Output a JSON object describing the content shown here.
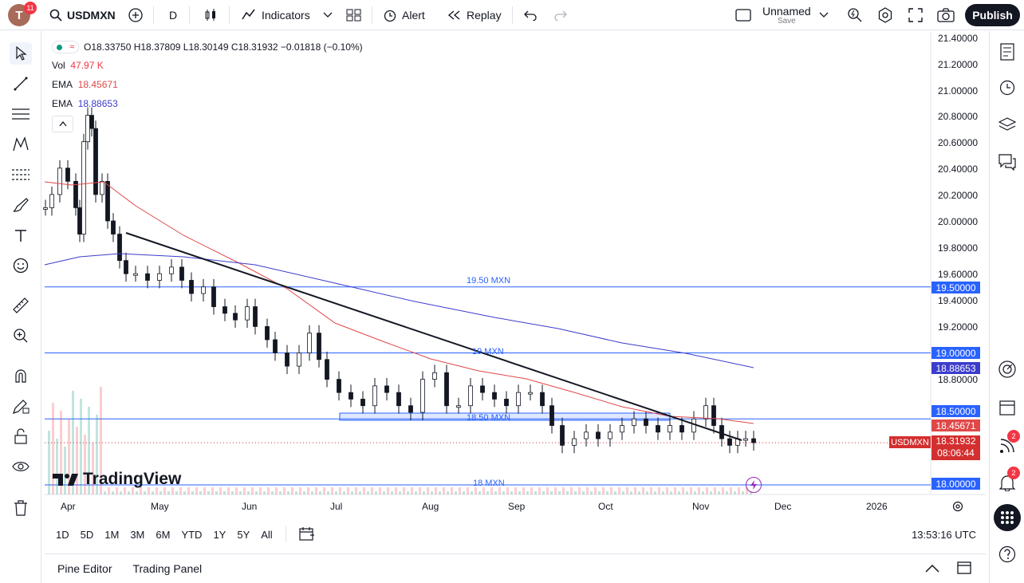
{
  "topbar": {
    "avatar_letter": "T",
    "notifications": "11",
    "symbol": "USDMXN",
    "interval": "D",
    "indicators_label": "Indicators",
    "alert_label": "Alert",
    "replay_label": "Replay",
    "layout_name": "Unnamed",
    "layout_sub": "Save",
    "publish_label": "Publish"
  },
  "legend": {
    "ohlc": "O18.33750  H18.37809  L18.30149  C18.31932  −0.01818 (−0.10%)",
    "vol_label": "Vol",
    "vol_value": "47.97 K",
    "ema1_label": "EMA",
    "ema1_value": "18.45671",
    "ema2_label": "EMA",
    "ema2_value": "18.88653"
  },
  "chart": {
    "watermark": "TradingView",
    "levels": [
      {
        "label": "19.50 MXN",
        "price": 19.5
      },
      {
        "label": "19 MXN",
        "price": 19.0
      },
      {
        "label": "18.50 MXN",
        "price": 18.5
      },
      {
        "label": "18 MXN",
        "price": 18.0
      }
    ],
    "y_ticks": [
      "21.40000",
      "21.20000",
      "21.00000",
      "20.80000",
      "20.60000",
      "20.40000",
      "20.20000",
      "20.00000",
      "19.80000",
      "19.60000",
      "19.40000",
      "19.20000",
      "18.80000"
    ],
    "x_ticks": [
      "Apr",
      "May",
      "Jun",
      "Jul",
      "Aug",
      "Sep",
      "Oct",
      "Nov",
      "Dec",
      "2026"
    ],
    "price_boxes": {
      "level_1950": "19.50000",
      "level_1900": "19.00000",
      "ema_slow": "18.88653",
      "level_1850": "18.50000",
      "ema_fast": "18.45671",
      "symbol_tag": "USDMXN",
      "last": "18.31932",
      "countdown": "08:06:44",
      "level_1800": "18.00000"
    },
    "colors": {
      "up": "#ffffff",
      "down": "#131722",
      "ema_fast": "#e04848",
      "ema_slow": "#3c3ccc",
      "level": "#2962ff",
      "last": "#d32f2f"
    }
  },
  "ranges": [
    "1D",
    "5D",
    "1M",
    "3M",
    "6M",
    "YTD",
    "1Y",
    "5Y",
    "All"
  ],
  "clock": "13:53:16 UTC",
  "panels": {
    "pine": "Pine Editor",
    "trading": "Trading Panel"
  },
  "right_badges": {
    "ideas": "2",
    "alerts": "2"
  }
}
